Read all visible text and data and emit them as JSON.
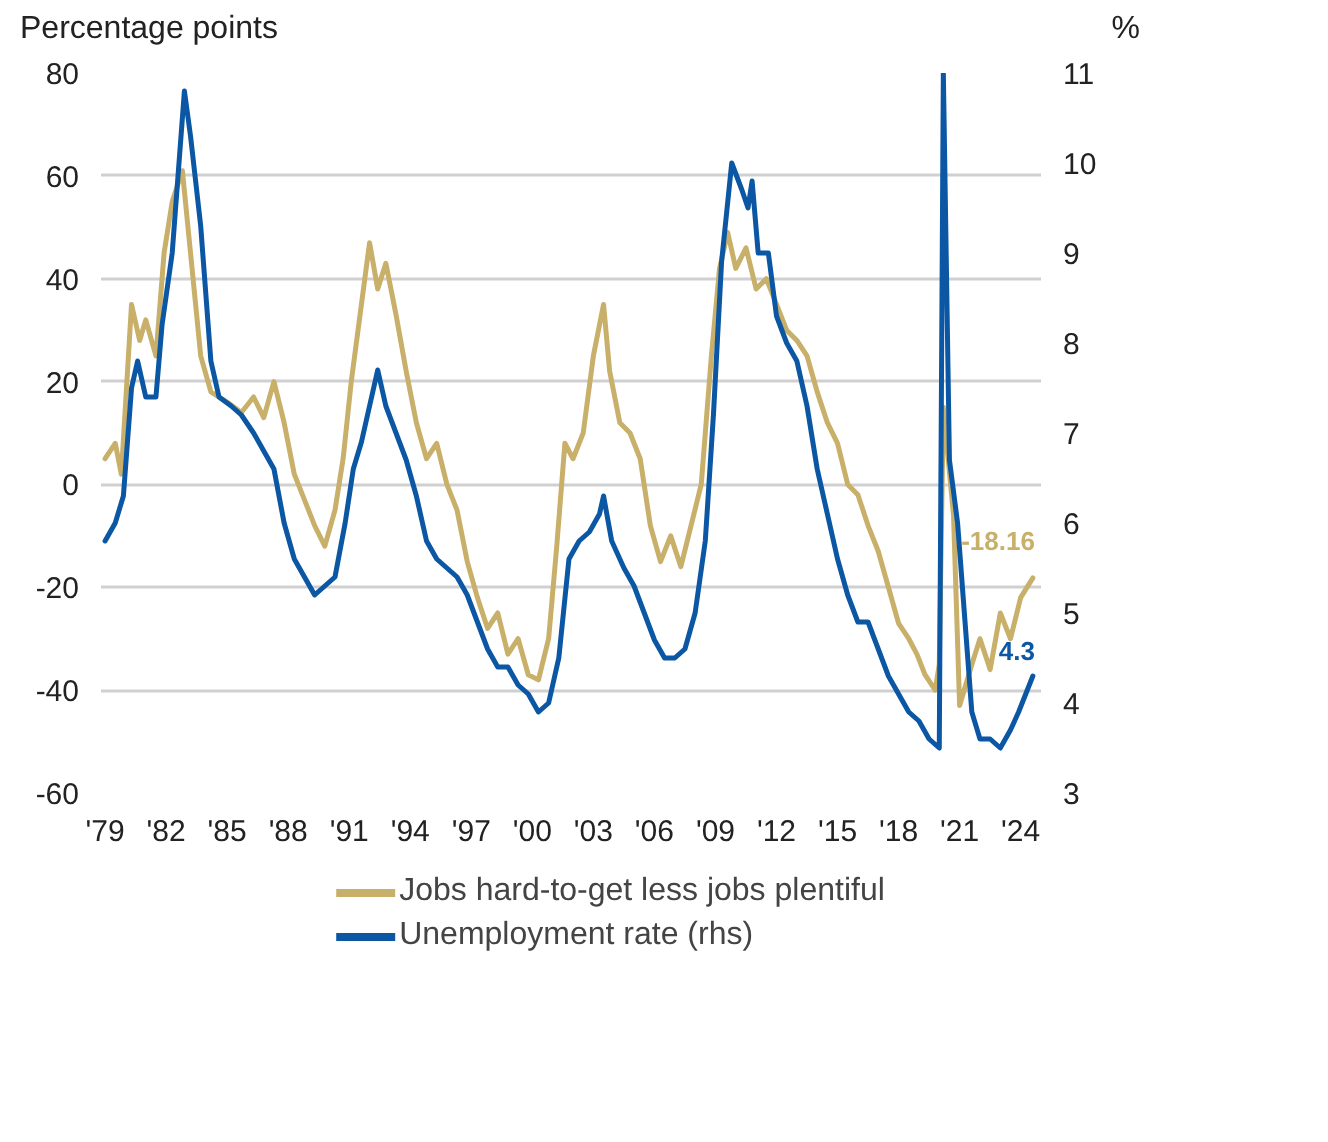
{
  "chart_data": {
    "type": "line",
    "ylabel": "Percentage points",
    "y2label": "%",
    "xlim": [
      1978.8,
      2025.0
    ],
    "xticks": [
      {
        "value": 1979,
        "label": "'79"
      },
      {
        "value": 1982,
        "label": "'82"
      },
      {
        "value": 1985,
        "label": "'85"
      },
      {
        "value": 1988,
        "label": "'88"
      },
      {
        "value": 1991,
        "label": "'91"
      },
      {
        "value": 1994,
        "label": "'94"
      },
      {
        "value": 1997,
        "label": "'97"
      },
      {
        "value": 2000,
        "label": "'00"
      },
      {
        "value": 2003,
        "label": "'03"
      },
      {
        "value": 2006,
        "label": "'06"
      },
      {
        "value": 2009,
        "label": "'09"
      },
      {
        "value": 2012,
        "label": "'12"
      },
      {
        "value": 2015,
        "label": "'15"
      },
      {
        "value": 2018,
        "label": "'18"
      },
      {
        "value": 2021,
        "label": "'21"
      },
      {
        "value": 2024,
        "label": "'24"
      }
    ],
    "ylim": [
      -60,
      80
    ],
    "yticks": [
      -60,
      -40,
      -20,
      0,
      20,
      40,
      60,
      80
    ],
    "y2lim": [
      3,
      11
    ],
    "y2ticks": [
      3,
      4,
      5,
      6,
      7,
      8,
      9,
      10,
      11
    ],
    "grid": "y",
    "legend": "bottom",
    "series": [
      {
        "name": "Jobs hard-to-get less jobs plentiful",
        "color": "#c8b06a",
        "x": [
          1979.0,
          1979.5,
          1979.8,
          1980.3,
          1980.7,
          1981.0,
          1981.5,
          1981.9,
          1982.3,
          1982.8,
          1983.2,
          1983.7,
          1984.2,
          1985.0,
          1985.7,
          1986.3,
          1986.8,
          1987.3,
          1987.8,
          1988.3,
          1988.8,
          1989.3,
          1989.8,
          1990.3,
          1990.7,
          1991.1,
          1991.6,
          1992.0,
          1992.4,
          1992.8,
          1993.3,
          1993.8,
          1994.3,
          1994.8,
          1995.3,
          1995.8,
          1996.3,
          1996.8,
          1997.3,
          1997.8,
          1998.3,
          1998.8,
          1999.3,
          1999.8,
          2000.3,
          2000.8,
          2001.2,
          2001.6,
          2002.0,
          2002.5,
          2003.0,
          2003.5,
          2003.8,
          2004.3,
          2004.8,
          2005.3,
          2005.8,
          2006.3,
          2006.8,
          2007.3,
          2007.8,
          2008.3,
          2008.8,
          2009.2,
          2009.6,
          2010.0,
          2010.5,
          2011.0,
          2011.5,
          2012.0,
          2012.5,
          2013.0,
          2013.5,
          2014.0,
          2014.5,
          2015.0,
          2015.5,
          2016.0,
          2016.5,
          2017.0,
          2017.5,
          2018.0,
          2018.5,
          2018.9,
          2019.3,
          2019.8,
          2020.0,
          2020.2,
          2020.7,
          2021.0,
          2021.6,
          2022.0,
          2022.5,
          2023.0,
          2023.5,
          2024.0,
          2024.6
        ],
        "values": [
          5,
          8,
          2,
          35,
          28,
          32,
          25,
          45,
          55,
          61,
          45,
          25,
          18,
          16,
          14,
          17,
          13,
          20,
          12,
          2,
          -3,
          -8,
          -12,
          -5,
          5,
          20,
          35,
          47,
          38,
          43,
          33,
          22,
          12,
          5,
          8,
          0,
          -5,
          -15,
          -22,
          -28,
          -25,
          -33,
          -30,
          -37,
          -38,
          -30,
          -12,
          8,
          5,
          10,
          25,
          35,
          22,
          12,
          10,
          5,
          -8,
          -15,
          -10,
          -16,
          -8,
          0,
          25,
          42,
          49,
          42,
          46,
          38,
          40,
          35,
          30,
          28,
          25,
          18,
          12,
          8,
          0,
          -2,
          -8,
          -13,
          -20,
          -27,
          -30,
          -33,
          -37,
          -40,
          -35,
          15,
          -6,
          -43,
          -35,
          -30,
          -36,
          -25,
          -30,
          -22,
          -18.16
        ],
        "value_labels": [
          null,
          null,
          null,
          null,
          null,
          null,
          null,
          null,
          null,
          null,
          null,
          null,
          null,
          null,
          null,
          null,
          null,
          null,
          null,
          null,
          null,
          null,
          null,
          null,
          null,
          null,
          null,
          null,
          null,
          null,
          null,
          null,
          null,
          null,
          null,
          null,
          null,
          null,
          null,
          null,
          null,
          null,
          null,
          null,
          null,
          null,
          null,
          null,
          null,
          null,
          null,
          null,
          null,
          null,
          null,
          null,
          null,
          null,
          null,
          null,
          null,
          null,
          null,
          null,
          null,
          null,
          null,
          null,
          null,
          null,
          null,
          null,
          null,
          null,
          null,
          null,
          null,
          null,
          null,
          null,
          null,
          null,
          null,
          null,
          null,
          null,
          null,
          null,
          null,
          null,
          null,
          null,
          null,
          null,
          null,
          null,
          "-18.16"
        ]
      },
      {
        "name": "Unemployment rate (rhs)",
        "color": "#0b57a4",
        "axis": "y2",
        "x": [
          1979.0,
          1979.5,
          1979.9,
          1980.3,
          1980.6,
          1981.0,
          1981.5,
          1981.8,
          1982.3,
          1982.9,
          1983.2,
          1983.7,
          1984.2,
          1984.6,
          1985.2,
          1985.7,
          1986.3,
          1986.8,
          1987.3,
          1987.8,
          1988.3,
          1988.8,
          1989.3,
          1989.8,
          1990.3,
          1990.8,
          1991.2,
          1991.6,
          1992.4,
          1992.8,
          1993.3,
          1993.8,
          1994.3,
          1994.8,
          1995.3,
          1995.8,
          1996.3,
          1996.8,
          1997.3,
          1997.8,
          1998.3,
          1998.8,
          1999.3,
          1999.8,
          2000.3,
          2000.8,
          2001.3,
          2001.8,
          2002.3,
          2002.8,
          2003.3,
          2003.5,
          2003.9,
          2004.5,
          2005.0,
          2005.5,
          2006.0,
          2006.5,
          2007.0,
          2007.5,
          2008.0,
          2008.5,
          2008.9,
          2009.3,
          2009.8,
          2010.3,
          2010.6,
          2010.8,
          2011.1,
          2011.6,
          2012.0,
          2012.5,
          2013.0,
          2013.5,
          2014.0,
          2014.5,
          2015.0,
          2015.5,
          2016.0,
          2016.5,
          2017.0,
          2017.5,
          2018.0,
          2018.5,
          2019.0,
          2019.5,
          2020.0,
          2020.2,
          2020.5,
          2020.9,
          2021.6,
          2022.0,
          2022.5,
          2023.0,
          2023.5,
          2023.9,
          2024.6
        ],
        "values": [
          5.8,
          6.0,
          6.3,
          7.5,
          7.8,
          7.4,
          7.4,
          8.2,
          9.0,
          10.8,
          10.3,
          9.3,
          7.8,
          7.4,
          7.3,
          7.2,
          7.0,
          6.8,
          6.6,
          6.0,
          5.6,
          5.4,
          5.2,
          5.3,
          5.4,
          6.0,
          6.6,
          6.9,
          7.7,
          7.3,
          7.0,
          6.7,
          6.3,
          5.8,
          5.6,
          5.5,
          5.4,
          5.2,
          4.9,
          4.6,
          4.4,
          4.4,
          4.2,
          4.1,
          3.9,
          4.0,
          4.5,
          5.6,
          5.8,
          5.9,
          6.1,
          6.3,
          5.8,
          5.5,
          5.3,
          5.0,
          4.7,
          4.5,
          4.5,
          4.6,
          5.0,
          5.8,
          7.2,
          8.9,
          10.0,
          9.7,
          9.5,
          9.8,
          9.0,
          9.0,
          8.3,
          8.0,
          7.8,
          7.3,
          6.6,
          6.1,
          5.6,
          5.2,
          4.9,
          4.9,
          4.6,
          4.3,
          4.1,
          3.9,
          3.8,
          3.6,
          3.5,
          11,
          6.7,
          6.0,
          3.9,
          3.6,
          3.6,
          3.5,
          3.7,
          3.9,
          4.3
        ],
        "value_labels": [
          null,
          null,
          null,
          null,
          null,
          null,
          null,
          null,
          null,
          null,
          null,
          null,
          null,
          null,
          null,
          null,
          null,
          null,
          null,
          null,
          null,
          null,
          null,
          null,
          null,
          null,
          null,
          null,
          null,
          null,
          null,
          null,
          null,
          null,
          null,
          null,
          null,
          null,
          null,
          null,
          null,
          null,
          null,
          null,
          null,
          null,
          null,
          null,
          null,
          null,
          null,
          null,
          null,
          null,
          null,
          null,
          null,
          null,
          null,
          null,
          null,
          null,
          null,
          null,
          null,
          null,
          null,
          null,
          null,
          null,
          null,
          null,
          null,
          null,
          null,
          null,
          null,
          null,
          null,
          null,
          null,
          null,
          null,
          null,
          null,
          null,
          null,
          null,
          null,
          null,
          null,
          null,
          null,
          null,
          null,
          null,
          "4.3"
        ]
      }
    ]
  }
}
